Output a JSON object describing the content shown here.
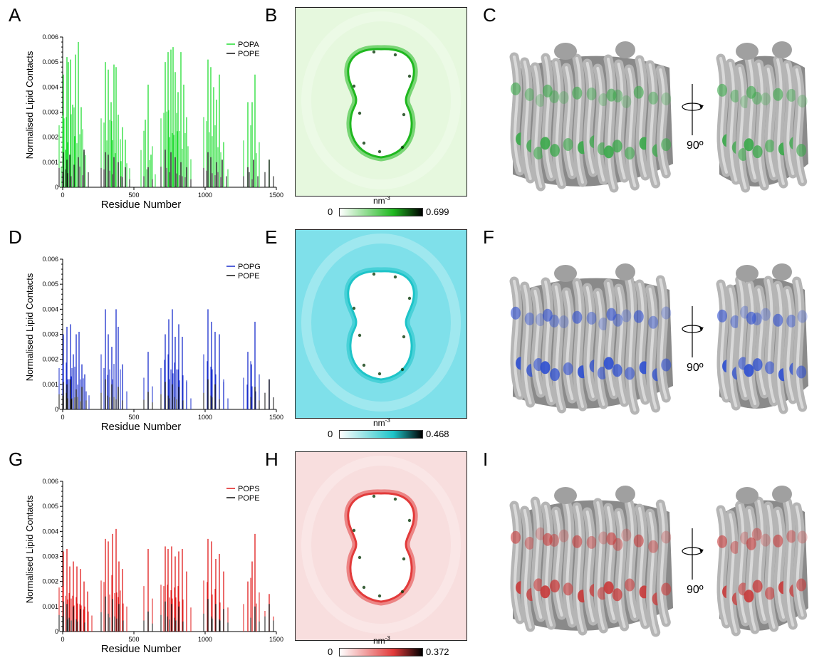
{
  "panels": [
    "A",
    "B",
    "C",
    "D",
    "E",
    "F",
    "G",
    "H",
    "I"
  ],
  "rotation_label": "90º",
  "chart_data": [
    {
      "type": "bar",
      "xlabel": "Residue Number",
      "ylabel": "Normalised Lipid Contacts",
      "xlim": [
        0,
        1500
      ],
      "ylim": [
        0,
        0.006
      ],
      "x_ticks": [
        "0",
        "500",
        "1000",
        "1500"
      ],
      "y_ticks": [
        "0",
        "0.001",
        "0.002",
        "0.003",
        "0.004",
        "0.005",
        "0.006"
      ],
      "legend_position": "top-right",
      "series": [
        {
          "name": "POPA",
          "color": "#22dd33",
          "points": [
            [
              5,
              0.0045
            ],
            [
              20,
              0.0015
            ],
            [
              30,
              0.0052
            ],
            [
              40,
              0.005
            ],
            [
              55,
              0.0051
            ],
            [
              70,
              0.0033
            ],
            [
              90,
              0.0053
            ],
            [
              110,
              0.0058
            ],
            [
              130,
              0.0032
            ],
            [
              150,
              0.0014
            ],
            [
              300,
              0.005
            ],
            [
              320,
              0.0047
            ],
            [
              340,
              0.0034
            ],
            [
              360,
              0.0049
            ],
            [
              375,
              0.0048
            ],
            [
              390,
              0.0029
            ],
            [
              420,
              0.0024
            ],
            [
              440,
              0.0019
            ],
            [
              580,
              0.0027
            ],
            [
              600,
              0.0041
            ],
            [
              620,
              0.0013
            ],
            [
              720,
              0.005
            ],
            [
              740,
              0.0054
            ],
            [
              760,
              0.0055
            ],
            [
              775,
              0.0056
            ],
            [
              790,
              0.0046
            ],
            [
              810,
              0.0038
            ],
            [
              830,
              0.0054
            ],
            [
              850,
              0.0041
            ],
            [
              870,
              0.0028
            ],
            [
              1020,
              0.0051
            ],
            [
              1040,
              0.0048
            ],
            [
              1060,
              0.004
            ],
            [
              1080,
              0.0035
            ],
            [
              1100,
              0.0045
            ],
            [
              1130,
              0.0018
            ],
            [
              1300,
              0.0034
            ],
            [
              1330,
              0.0034
            ],
            [
              1350,
              0.0045
            ],
            [
              1450,
              0.0011
            ]
          ]
        },
        {
          "name": "POPE",
          "color": "#111111",
          "points": [
            [
              5,
              0.0014
            ],
            [
              30,
              0.0011
            ],
            [
              50,
              0.0013
            ],
            [
              80,
              0.0009
            ],
            [
              110,
              0.0012
            ],
            [
              150,
              0.0015
            ],
            [
              300,
              0.0014
            ],
            [
              320,
              0.0013
            ],
            [
              360,
              0.0012
            ],
            [
              390,
              0.001
            ],
            [
              440,
              0.0008
            ],
            [
              600,
              0.0008
            ],
            [
              720,
              0.0015
            ],
            [
              760,
              0.0014
            ],
            [
              790,
              0.0012
            ],
            [
              830,
              0.001
            ],
            [
              870,
              0.0008
            ],
            [
              1020,
              0.0014
            ],
            [
              1040,
              0.0012
            ],
            [
              1080,
              0.001
            ],
            [
              1120,
              0.0011
            ],
            [
              1300,
              0.0008
            ],
            [
              1340,
              0.0011
            ],
            [
              1450,
              0.0011
            ]
          ]
        }
      ]
    },
    {
      "type": "bar",
      "xlabel": "Residue Number",
      "ylabel": "Normalised Lipid Contacts",
      "xlim": [
        0,
        1500
      ],
      "ylim": [
        0,
        0.006
      ],
      "x_ticks": [
        "0",
        "500",
        "1000",
        "1500"
      ],
      "y_ticks": [
        "0",
        "0.001",
        "0.002",
        "0.003",
        "0.004",
        "0.005",
        "0.006"
      ],
      "legend_position": "top-right",
      "series": [
        {
          "name": "POPG",
          "color": "#1a2ecc",
          "points": [
            [
              5,
              0.003
            ],
            [
              30,
              0.0033
            ],
            [
              55,
              0.0034
            ],
            [
              75,
              0.0022
            ],
            [
              95,
              0.003
            ],
            [
              115,
              0.0031
            ],
            [
              135,
              0.0018
            ],
            [
              155,
              0.0014
            ],
            [
              300,
              0.004
            ],
            [
              320,
              0.003
            ],
            [
              345,
              0.0025
            ],
            [
              375,
              0.004
            ],
            [
              390,
              0.0033
            ],
            [
              420,
              0.0018
            ],
            [
              600,
              0.0023
            ],
            [
              720,
              0.003
            ],
            [
              745,
              0.0036
            ],
            [
              770,
              0.004
            ],
            [
              790,
              0.0029
            ],
            [
              815,
              0.0034
            ],
            [
              840,
              0.0029
            ],
            [
              870,
              0.0011
            ],
            [
              1020,
              0.004
            ],
            [
              1045,
              0.0035
            ],
            [
              1070,
              0.0031
            ],
            [
              1100,
              0.003
            ],
            [
              1130,
              0.0011
            ],
            [
              1300,
              0.0023
            ],
            [
              1325,
              0.0018
            ],
            [
              1350,
              0.0035
            ],
            [
              1450,
              0.0012
            ]
          ]
        },
        {
          "name": "POPE",
          "color": "#111111",
          "points": [
            [
              5,
              0.0011
            ],
            [
              30,
              0.001
            ],
            [
              55,
              0.0012
            ],
            [
              95,
              0.0008
            ],
            [
              135,
              0.0009
            ],
            [
              300,
              0.0012
            ],
            [
              345,
              0.001
            ],
            [
              390,
              0.0009
            ],
            [
              600,
              0.0007
            ],
            [
              720,
              0.0011
            ],
            [
              770,
              0.001
            ],
            [
              815,
              0.0009
            ],
            [
              1020,
              0.0012
            ],
            [
              1070,
              0.001
            ],
            [
              1350,
              0.0009
            ],
            [
              1450,
              0.0012
            ]
          ]
        }
      ]
    },
    {
      "type": "bar",
      "xlabel": "Residue Number",
      "ylabel": "Normalised Lipid Contacts",
      "xlim": [
        0,
        1500
      ],
      "ylim": [
        0,
        0.006
      ],
      "x_ticks": [
        "0",
        "500",
        "1000",
        "1500"
      ],
      "y_ticks": [
        "0",
        "0.001",
        "0.002",
        "0.003",
        "0.004",
        "0.005",
        "0.006"
      ],
      "legend_position": "top-right",
      "series": [
        {
          "name": "POPS",
          "color": "#e01a1a",
          "points": [
            [
              5,
              0.0032
            ],
            [
              30,
              0.0033
            ],
            [
              50,
              0.0026
            ],
            [
              75,
              0.0028
            ],
            [
              100,
              0.0026
            ],
            [
              125,
              0.0025
            ],
            [
              150,
              0.002
            ],
            [
              175,
              0.0016
            ],
            [
              300,
              0.0037
            ],
            [
              320,
              0.0036
            ],
            [
              350,
              0.0039
            ],
            [
              375,
              0.0041
            ],
            [
              395,
              0.0028
            ],
            [
              420,
              0.0025
            ],
            [
              600,
              0.0033
            ],
            [
              720,
              0.0034
            ],
            [
              740,
              0.0033
            ],
            [
              765,
              0.0034
            ],
            [
              790,
              0.003
            ],
            [
              815,
              0.0032
            ],
            [
              840,
              0.0033
            ],
            [
              870,
              0.0024
            ],
            [
              1020,
              0.0037
            ],
            [
              1045,
              0.0036
            ],
            [
              1075,
              0.0029
            ],
            [
              1100,
              0.0031
            ],
            [
              1130,
              0.0024
            ],
            [
              1300,
              0.002
            ],
            [
              1330,
              0.0028
            ],
            [
              1350,
              0.0039
            ],
            [
              1450,
              0.0015
            ]
          ]
        },
        {
          "name": "POPE",
          "color": "#111111",
          "points": [
            [
              5,
              0.0012
            ],
            [
              30,
              0.0011
            ],
            [
              75,
              0.001
            ],
            [
              125,
              0.0009
            ],
            [
              300,
              0.0014
            ],
            [
              350,
              0.0013
            ],
            [
              395,
              0.0011
            ],
            [
              600,
              0.0008
            ],
            [
              720,
              0.0012
            ],
            [
              765,
              0.0011
            ],
            [
              815,
              0.001
            ],
            [
              1020,
              0.0013
            ],
            [
              1075,
              0.0011
            ],
            [
              1130,
              0.0009
            ],
            [
              1350,
              0.001
            ],
            [
              1450,
              0.0011
            ]
          ]
        }
      ]
    }
  ],
  "density_maps": [
    {
      "unit": "nm",
      "unit_exp": "-3",
      "min_label": "0",
      "max_label": "0.699",
      "low_color": "#ffffff",
      "high_color": "#1fb81f",
      "dark_color": "#000000",
      "bg_color": "#e6f8de"
    },
    {
      "unit": "nm",
      "unit_exp": "-3",
      "min_label": "0",
      "max_label": "0.468",
      "low_color": "#ffffff",
      "high_color": "#1ec4c8",
      "dark_color": "#000000",
      "bg_color": "#7fe0ea"
    },
    {
      "unit": "nm",
      "unit_exp": "-3",
      "min_label": "0",
      "max_label": "0.372",
      "low_color": "#ffffff",
      "high_color": "#e23a3a",
      "dark_color": "#000000",
      "bg_color": "#f8dede"
    }
  ],
  "structure_colors": [
    "#3aa84a",
    "#2e4fd0",
    "#c83a3a"
  ]
}
